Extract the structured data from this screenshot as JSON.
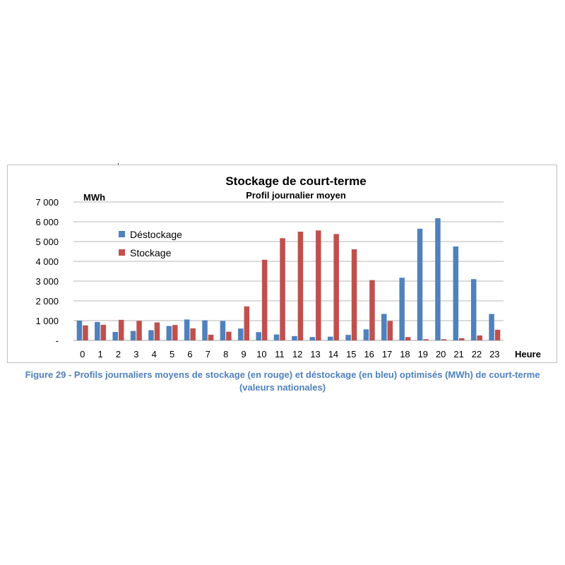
{
  "stray_mark": ",",
  "caption_lines": [
    "Figure 29 - Profils journaliers moyens de stockage (en rouge) et déstockage (en bleu) optimisés (MWh) de court-terme",
    "(valeurs nationales)"
  ],
  "colors": {
    "destockage": "#4f81bd",
    "stockage": "#c0504d",
    "grid": "#b7b7b7",
    "caption": "#4f81bd"
  },
  "chart_data": {
    "type": "bar",
    "title": "Stockage de court-terme",
    "subtitle": "Profil journalier moyen",
    "ylabel": "MWh",
    "xlabel": "Heure",
    "ylim": [
      0,
      7000
    ],
    "yticks": [
      {
        "value": 0,
        "label": "-"
      },
      {
        "value": 1000,
        "label": "1 000"
      },
      {
        "value": 2000,
        "label": "2 000"
      },
      {
        "value": 3000,
        "label": "3 000"
      },
      {
        "value": 4000,
        "label": "4 000"
      },
      {
        "value": 5000,
        "label": "5 000"
      },
      {
        "value": 6000,
        "label": "6 000"
      },
      {
        "value": 7000,
        "label": "7 000"
      }
    ],
    "grid": true,
    "legend": "top-left",
    "categories": [
      "0",
      "1",
      "2",
      "3",
      "4",
      "5",
      "6",
      "7",
      "8",
      "9",
      "10",
      "11",
      "12",
      "13",
      "14",
      "15",
      "16",
      "17",
      "18",
      "19",
      "20",
      "21",
      "22",
      "23"
    ],
    "series": [
      {
        "name": "Déstockage",
        "color": "#4f81bd",
        "values": [
          1000,
          930,
          430,
          480,
          520,
          730,
          1060,
          1020,
          980,
          600,
          420,
          300,
          220,
          170,
          190,
          280,
          560,
          1340,
          3170,
          5650,
          6180,
          4750,
          3100,
          1340
        ]
      },
      {
        "name": "Stockage",
        "color": "#c0504d",
        "values": [
          760,
          790,
          1040,
          990,
          910,
          780,
          610,
          290,
          440,
          1720,
          4080,
          5170,
          5500,
          5560,
          5380,
          4610,
          3050,
          980,
          170,
          60,
          60,
          110,
          250,
          540
        ]
      }
    ]
  }
}
